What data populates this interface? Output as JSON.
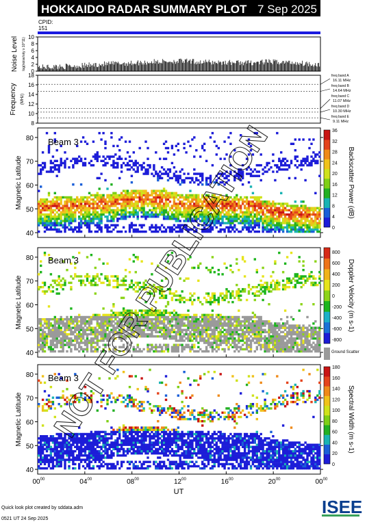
{
  "header": {
    "title": "HOKKAIDO RADAR SUMMARY PLOT",
    "date": "7 Sep 2025"
  },
  "cpid": {
    "label": "CPID:",
    "value": "151"
  },
  "noise_panel": {
    "ylabel": "Noise Level",
    "ylabel_sub": "log(noise/sky x 10^11)",
    "yticks": [
      "0",
      "2",
      "4",
      "6",
      "8",
      "10"
    ]
  },
  "frequency_panel": {
    "ylabel": "Frequency",
    "ylabel_unit": "(MHz)",
    "yticks": [
      "8",
      "10",
      "12",
      "14",
      "16",
      "18"
    ],
    "bands": [
      {
        "name": "freq band A",
        "value": "16.11 MHz"
      },
      {
        "name": "freq band B",
        "value": "14.64 MHz"
      },
      {
        "name": "freq band C",
        "value": "11.07 MHz"
      },
      {
        "name": "freq band D",
        "value": "10.30 MHz"
      },
      {
        "name": "freq band E",
        "value": "9.11 MHz"
      }
    ]
  },
  "panels": [
    {
      "beam_label": "Beam 3",
      "ylabel": "Magnetic Latitude",
      "colorbar_title": "Backscatter Power (dB)",
      "colorbar_ticks": [
        "0",
        "4",
        "8",
        "12",
        "16",
        "20",
        "24",
        "28",
        "32",
        "36"
      ],
      "colorbar_colors": [
        "#1d1dd8",
        "#1a5fd8",
        "#19b3b3",
        "#22b022",
        "#7fcf16",
        "#cfe21b",
        "#f0c21b",
        "#ef8a1a",
        "#e4431c",
        "#c81414"
      ]
    },
    {
      "beam_label": "Beam 3",
      "ylabel": "Magnetic Latitude",
      "colorbar_title": "Doppler Velocity (m s-1)",
      "colorbar_ticks": [
        "800",
        "600",
        "400",
        "200",
        "0",
        "-200",
        "-400",
        "-600",
        "-800"
      ],
      "colorbar_colors": [
        "#1c1cd6",
        "#1a72d6",
        "#1cb0c8",
        "#1db51d",
        "#8dd41a",
        "#e6e41b",
        "#f1b31a",
        "#ee731a",
        "#d62a17"
      ],
      "ground_scatter_label": "Ground Scatter"
    },
    {
      "beam_label": "Beam 3",
      "ylabel": "Magnetic Latitude",
      "colorbar_title": "Spectral Width (m s-1)",
      "colorbar_ticks": [
        "0",
        "20",
        "40",
        "60",
        "80",
        "100",
        "120",
        "140",
        "160",
        "180"
      ],
      "colorbar_colors": [
        "#1d1dd8",
        "#1a5fd8",
        "#19b3b3",
        "#22b022",
        "#7fcf16",
        "#cfe21b",
        "#f0c21b",
        "#ef8a1a",
        "#e4431c",
        "#c81414"
      ]
    }
  ],
  "xaxis": {
    "label": "UT",
    "ticks": [
      "00",
      "04",
      "08",
      "12",
      "16",
      "20",
      "00"
    ],
    "tick_sup": "00"
  },
  "footer": {
    "line1": "Quick look plot created by sddata.adm",
    "line2": "0521 UT 24 Sep 2025",
    "logo": "ISEE"
  },
  "watermark": "NOT FOR PUBLICATION",
  "chart_data": [
    {
      "type": "line",
      "title": "Noise Level",
      "ylim": [
        0,
        10
      ],
      "x_unit": "UT hours",
      "x": [
        0,
        2,
        4,
        6,
        8,
        10,
        12,
        14,
        16,
        18,
        20,
        22,
        24
      ],
      "values": [
        1.0,
        1.2,
        1.5,
        2.0,
        2.2,
        2.6,
        2.8,
        2.5,
        2.4,
        2.3,
        2.6,
        2.3,
        1.8
      ]
    },
    {
      "type": "line",
      "title": "Frequency (MHz)",
      "ylim": [
        8,
        18
      ],
      "x": [
        0,
        24
      ],
      "series": [
        {
          "name": "16.11 MHz",
          "values": [
            16.11,
            16.11
          ]
        },
        {
          "name": "14.64 MHz",
          "values": [
            14.64,
            14.64
          ]
        },
        {
          "name": "11.07 MHz",
          "values": [
            11.07,
            11.07
          ]
        },
        {
          "name": "10.30 MHz",
          "values": [
            10.3,
            10.3
          ]
        },
        {
          "name": "9.11 MHz",
          "values": [
            9.11,
            9.11
          ]
        }
      ]
    },
    {
      "type": "heatmap",
      "title": "Backscatter Power (dB)",
      "xlim": [
        0,
        24
      ],
      "ylim": [
        38,
        84
      ],
      "yticks": [
        40,
        50,
        60,
        70,
        80
      ],
      "zlim": [
        0,
        36
      ]
    },
    {
      "type": "heatmap",
      "title": "Doppler Velocity (m s-1)",
      "xlim": [
        0,
        24
      ],
      "ylim": [
        38,
        84
      ],
      "yticks": [
        40,
        50,
        60,
        70,
        80
      ],
      "zlim": [
        -800,
        800
      ]
    },
    {
      "type": "heatmap",
      "title": "Spectral Width (m s-1)",
      "xlim": [
        0,
        24
      ],
      "ylim": [
        38,
        84
      ],
      "yticks": [
        40,
        50,
        60,
        70,
        80
      ],
      "zlim": [
        0,
        180
      ]
    }
  ]
}
